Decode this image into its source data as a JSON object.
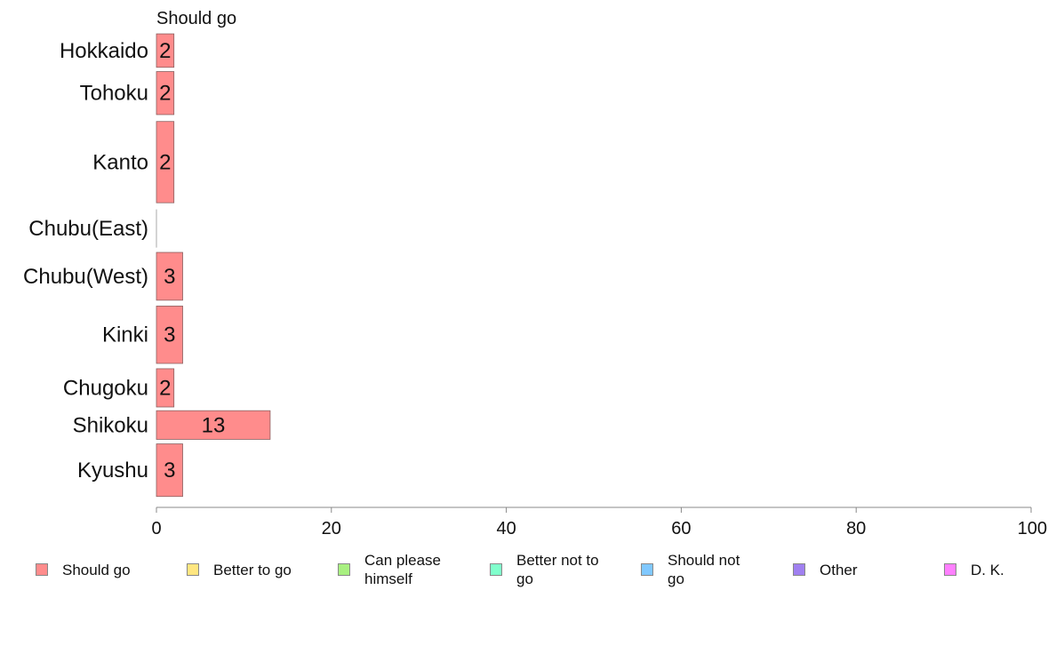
{
  "chart_data": {
    "type": "bar",
    "orientation": "horizontal",
    "title": "Should go",
    "categories": [
      "Hokkaido",
      "Tohoku",
      "Kanto",
      "Chubu(East)",
      "Chubu(West)",
      "Kinki",
      "Chugoku",
      "Shikoku",
      "Kyushu"
    ],
    "series": [
      {
        "name": "Should go",
        "values": [
          2,
          2,
          2,
          0,
          3,
          3,
          2,
          13,
          3
        ],
        "value_labels": [
          "2",
          "2",
          "2",
          "",
          "3",
          "3",
          "2",
          "13",
          "3"
        ]
      }
    ],
    "row_weights": [
      0.7,
      0.9,
      1.7,
      0.8,
      1.0,
      1.2,
      0.8,
      0.6,
      1.1
    ],
    "xlim": [
      0,
      100
    ],
    "xticks": [
      "0",
      "20",
      "40",
      "60",
      "80",
      "100"
    ],
    "grid": false,
    "legend_position": "bottom"
  },
  "legend": {
    "items": [
      {
        "label": "Should go",
        "color": "#ff8c8c"
      },
      {
        "label": "Better to go",
        "color": "#ffe680"
      },
      {
        "label": "Can please himself",
        "color": "#a8f080"
      },
      {
        "label": "Better not to go",
        "color": "#80ffcc"
      },
      {
        "label": "Should not go",
        "color": "#80c8ff"
      },
      {
        "label": "Other",
        "color": "#a080f0"
      },
      {
        "label": "D. K.",
        "color": "#ff80ff"
      }
    ]
  },
  "colors": {
    "bar": "#ff8c8c",
    "bar_stroke": "#8a6060",
    "axis": "#888888"
  }
}
